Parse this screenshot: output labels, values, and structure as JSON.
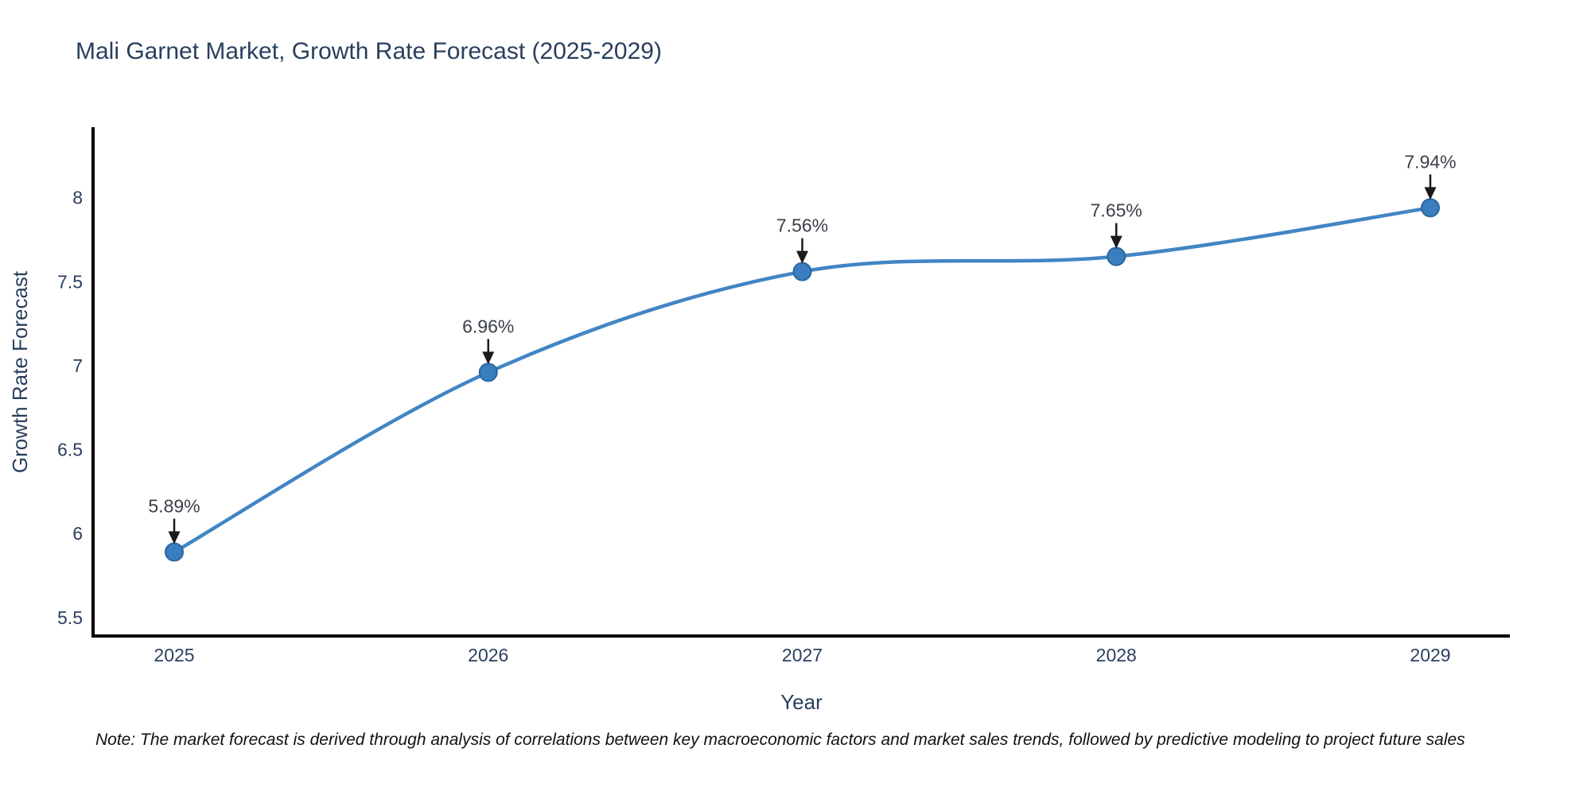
{
  "title": "Mali Garnet Market, Growth Rate Forecast (2025-2029)",
  "note": "Note: The market forecast is derived through analysis of correlations between key macroeconomic factors and market sales trends, followed by predictive modeling to project future sales",
  "chart_data": {
    "type": "line",
    "title": "Mali Garnet Market, Growth Rate Forecast (2025-2029)",
    "x": [
      "2025",
      "2026",
      "2027",
      "2028",
      "2029"
    ],
    "values": [
      5.89,
      6.96,
      7.56,
      7.65,
      7.94
    ],
    "point_labels": [
      "5.89%",
      "6.96%",
      "7.56%",
      "7.65%",
      "7.94%"
    ],
    "xlabel": "Year",
    "ylabel": "Growth Rate Forecast",
    "yticks": [
      5.5,
      6,
      6.5,
      7,
      7.5,
      8
    ],
    "ylim": [
      5.39,
      8.42
    ],
    "grid": false,
    "legend": "none",
    "line_shape": "spline",
    "colors": {
      "line": "#4185c4",
      "marker_fill": "#3a7ebf",
      "marker_edge": "#2b669e",
      "axis_line": "#000000",
      "axis_text": "#2a3f5f",
      "annotation_text": "#3a3f47",
      "arrow": "#1a1a1a",
      "background": "#ffffff"
    }
  }
}
